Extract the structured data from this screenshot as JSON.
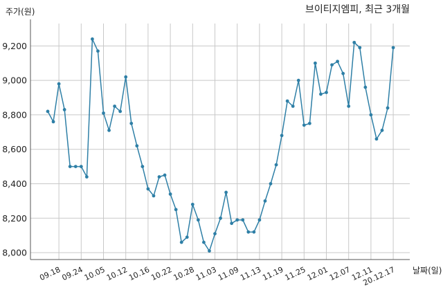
{
  "chart_data": {
    "type": "line",
    "title": "브이티지엠피, 최근 3개월",
    "ylabel": "주가(원)",
    "xlabel": "날짜(일)",
    "ylim": [
      7960,
      9330
    ],
    "yticks": [
      8000,
      8200,
      8400,
      8600,
      8800,
      9000,
      9200
    ],
    "ytick_labels": [
      "8,000",
      "8,200",
      "8,400",
      "8,600",
      "8,800",
      "9,000",
      "9,200"
    ],
    "xtick_labels": [
      "09.18",
      "09.24",
      "10.05",
      "10.12",
      "10.16",
      "10.22",
      "10.28",
      "11.03",
      "11.09",
      "11.13",
      "11.19",
      "11.25",
      "12.01",
      "12.07",
      "12.11",
      "20.12.17"
    ],
    "xtick_index": [
      2,
      6,
      10,
      14,
      18,
      22,
      26,
      30,
      34,
      38,
      42,
      46,
      50,
      54,
      58,
      62
    ],
    "grid": true,
    "line_color": "#2e7fa6",
    "series": [
      {
        "values": [
          8820,
          8760,
          8980,
          8830,
          8500,
          8500,
          8500,
          8440,
          9240,
          9170,
          8810,
          8710,
          8850,
          8820,
          9020,
          8750,
          8620,
          8500,
          8370,
          8330,
          8440,
          8450,
          8340,
          8250,
          8060,
          8090,
          8280,
          8190,
          8060,
          8010,
          8110,
          8200,
          8350,
          8170,
          8190,
          8190,
          8120,
          8120,
          8190,
          8300,
          8400,
          8510,
          8680,
          8880,
          8850,
          9000,
          8740,
          8750,
          9100,
          8920,
          8930,
          9090,
          9110,
          9040,
          8850,
          9220,
          9190,
          8960,
          8800,
          8660,
          8710,
          8840,
          9190
        ]
      }
    ]
  }
}
